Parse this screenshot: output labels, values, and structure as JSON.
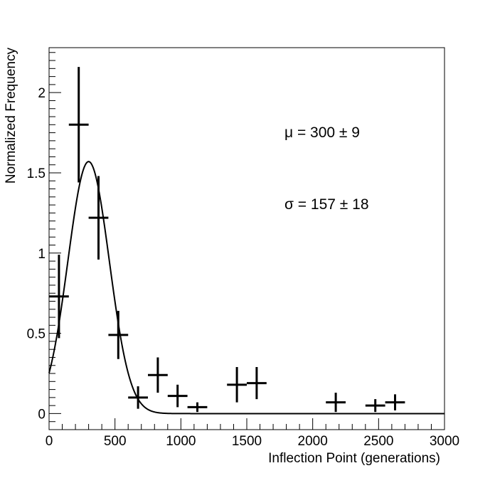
{
  "chart_data": {
    "type": "scatter",
    "xlabel": "Inflection Point (generations)",
    "ylabel": "Normalized Frequency",
    "xlim": [
      0,
      3000
    ],
    "ylim": [
      -0.1,
      2.28
    ],
    "x_ticks": [
      0,
      500,
      1000,
      1500,
      2000,
      2500,
      3000
    ],
    "x_tick_labels": [
      "0",
      "500",
      "1000",
      "1500",
      "2000",
      "2500",
      "3000"
    ],
    "y_ticks": [
      0,
      0.5,
      1,
      1.5,
      2
    ],
    "y_tick_labels": [
      "0",
      "0.5",
      "1",
      "1.5",
      "2"
    ],
    "grid": false,
    "legend": "none",
    "points": [
      {
        "x": 75,
        "y": 0.73,
        "xerr": 75,
        "yerr": 0.26
      },
      {
        "x": 225,
        "y": 1.8,
        "xerr": 75,
        "yerr": 0.36
      },
      {
        "x": 375,
        "y": 1.22,
        "xerr": 75,
        "yerr": 0.26
      },
      {
        "x": 525,
        "y": 0.49,
        "xerr": 75,
        "yerr": 0.15
      },
      {
        "x": 675,
        "y": 0.1,
        "xerr": 75,
        "yerr": 0.07
      },
      {
        "x": 825,
        "y": 0.24,
        "xerr": 75,
        "yerr": 0.11
      },
      {
        "x": 975,
        "y": 0.11,
        "xerr": 75,
        "yerr": 0.07
      },
      {
        "x": 1125,
        "y": 0.04,
        "xerr": 75,
        "yerr": 0.03
      },
      {
        "x": 1425,
        "y": 0.18,
        "xerr": 75,
        "yerr": 0.11
      },
      {
        "x": 1575,
        "y": 0.19,
        "xerr": 75,
        "yerr": 0.1
      },
      {
        "x": 2175,
        "y": 0.07,
        "xerr": 75,
        "yerr": 0.06
      },
      {
        "x": 2475,
        "y": 0.05,
        "xerr": 75,
        "yerr": 0.04
      },
      {
        "x": 2625,
        "y": 0.07,
        "xerr": 75,
        "yerr": 0.05
      }
    ],
    "fit": {
      "type": "gaussian",
      "mean": 300,
      "sigma": 157,
      "amplitude": 1.57,
      "x_range": [
        0,
        3000
      ]
    },
    "annotations": [
      {
        "symbol": "μ",
        "text": " = 300 ± 9"
      },
      {
        "symbol": "σ",
        "text": " = 157 ± 18"
      }
    ]
  }
}
